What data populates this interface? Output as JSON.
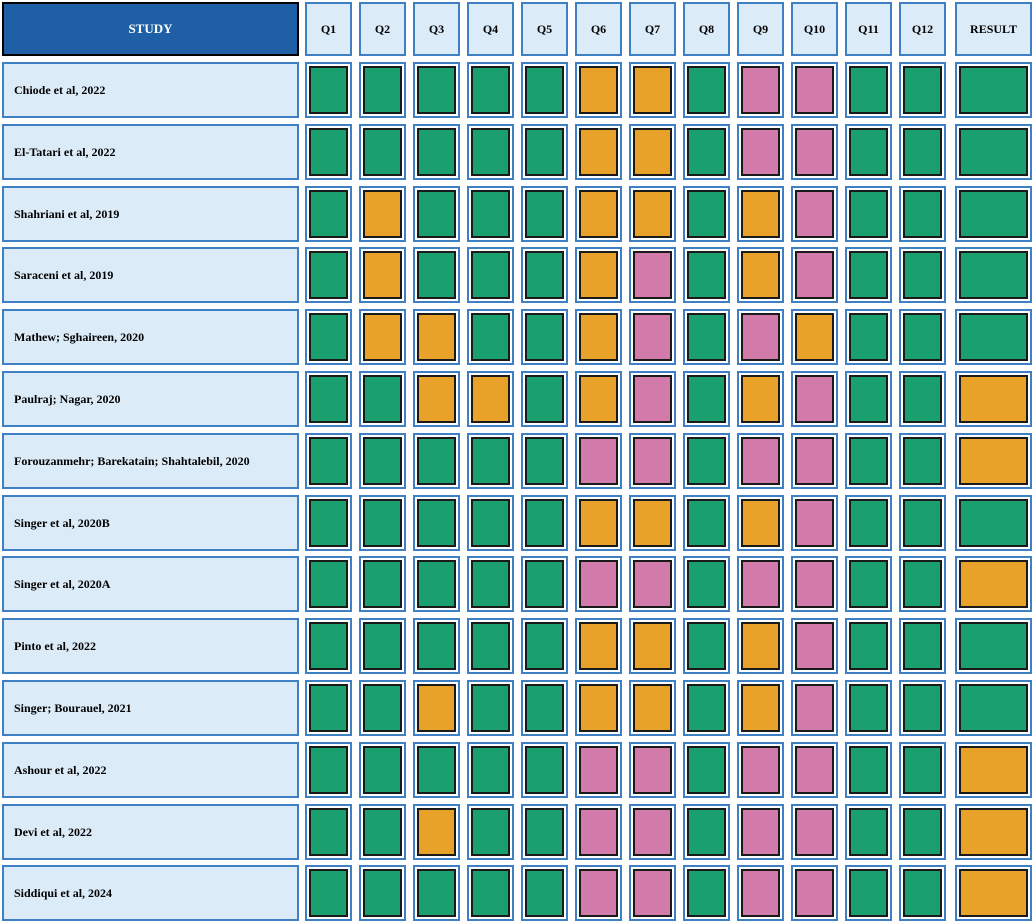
{
  "chart_data": {
    "type": "heatmap",
    "row_header": "STUDY",
    "columns": [
      "Q1",
      "Q2",
      "Q3",
      "Q4",
      "Q5",
      "Q6",
      "Q7",
      "Q8",
      "Q9",
      "Q10",
      "Q11",
      "Q12",
      "RESULT"
    ],
    "rating_colors": {
      "green": "#1aa06e",
      "orange": "#e8a22a",
      "pink": "#d27aa9"
    },
    "rows": [
      {
        "study": "Chiode et al, 2022",
        "ratings": [
          "green",
          "green",
          "green",
          "green",
          "green",
          "orange",
          "orange",
          "green",
          "pink",
          "pink",
          "green",
          "green",
          "green"
        ]
      },
      {
        "study": "El-Tatari et al, 2022",
        "ratings": [
          "green",
          "green",
          "green",
          "green",
          "green",
          "orange",
          "orange",
          "green",
          "pink",
          "pink",
          "green",
          "green",
          "green"
        ]
      },
      {
        "study": "Shahriani et al, 2019",
        "ratings": [
          "green",
          "orange",
          "green",
          "green",
          "green",
          "orange",
          "orange",
          "green",
          "orange",
          "pink",
          "green",
          "green",
          "green"
        ]
      },
      {
        "study": "Saraceni et al, 2019",
        "ratings": [
          "green",
          "orange",
          "green",
          "green",
          "green",
          "orange",
          "pink",
          "green",
          "orange",
          "pink",
          "green",
          "green",
          "green"
        ]
      },
      {
        "study": "Mathew; Sghaireen, 2020",
        "ratings": [
          "green",
          "orange",
          "orange",
          "green",
          "green",
          "orange",
          "pink",
          "green",
          "pink",
          "orange",
          "green",
          "green",
          "green"
        ]
      },
      {
        "study": "Paulraj; Nagar, 2020",
        "ratings": [
          "green",
          "green",
          "orange",
          "orange",
          "green",
          "orange",
          "pink",
          "green",
          "orange",
          "pink",
          "green",
          "green",
          "orange"
        ]
      },
      {
        "study": "Forouzanmehr; Barekatain; Shahtalebil, 2020",
        "ratings": [
          "green",
          "green",
          "green",
          "green",
          "green",
          "pink",
          "pink",
          "green",
          "pink",
          "pink",
          "green",
          "green",
          "orange"
        ]
      },
      {
        "study": "Singer et al, 2020B",
        "ratings": [
          "green",
          "green",
          "green",
          "green",
          "green",
          "orange",
          "orange",
          "green",
          "orange",
          "pink",
          "green",
          "green",
          "green"
        ]
      },
      {
        "study": "Singer et al, 2020A",
        "ratings": [
          "green",
          "green",
          "green",
          "green",
          "green",
          "pink",
          "pink",
          "green",
          "pink",
          "pink",
          "green",
          "green",
          "orange"
        ]
      },
      {
        "study": "Pinto et al, 2022",
        "ratings": [
          "green",
          "green",
          "green",
          "green",
          "green",
          "orange",
          "orange",
          "green",
          "orange",
          "pink",
          "green",
          "green",
          "green"
        ]
      },
      {
        "study": "Singer; Bourauel, 2021",
        "ratings": [
          "green",
          "green",
          "orange",
          "green",
          "green",
          "orange",
          "orange",
          "green",
          "orange",
          "pink",
          "green",
          "green",
          "green"
        ]
      },
      {
        "study": "Ashour et al, 2022",
        "ratings": [
          "green",
          "green",
          "green",
          "green",
          "green",
          "pink",
          "pink",
          "green",
          "pink",
          "pink",
          "green",
          "green",
          "orange"
        ]
      },
      {
        "study": "Devi et al, 2022",
        "ratings": [
          "green",
          "green",
          "orange",
          "green",
          "green",
          "pink",
          "pink",
          "green",
          "pink",
          "pink",
          "green",
          "green",
          "orange"
        ]
      },
      {
        "study": "Siddiqui et al, 2024",
        "ratings": [
          "green",
          "green",
          "green",
          "green",
          "green",
          "pink",
          "pink",
          "green",
          "pink",
          "pink",
          "green",
          "green",
          "orange"
        ]
      }
    ]
  }
}
